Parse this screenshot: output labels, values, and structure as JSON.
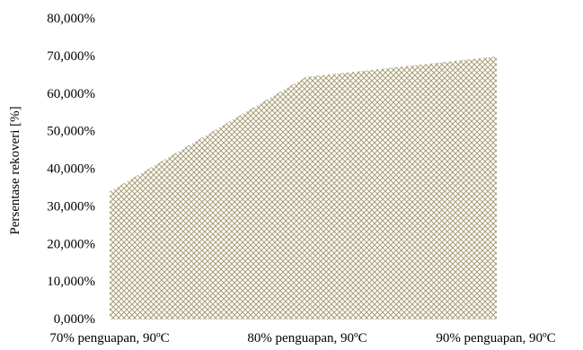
{
  "chart_data": {
    "type": "area",
    "title": "",
    "xlabel": "",
    "ylabel": "Persentase rekoveri [%]",
    "categories": [
      "70% penguapan, 90ºC",
      "80% penguapan, 90ºC",
      "90% penguapan, 90ºC"
    ],
    "series": [
      {
        "values": [
          34.0,
          64.5,
          70.0
        ]
      }
    ],
    "ylim": [
      0,
      80
    ],
    "yticks": [
      "0,000%",
      "10,000%",
      "20,000%",
      "30,000%",
      "40,000%",
      "50,000%",
      "60,000%",
      "70,000%",
      "80,000%"
    ],
    "grid": false,
    "legend": "none",
    "fill_pattern": "crosshatch",
    "colors": {
      "hatch": "#a79d74",
      "background": "#ffffff"
    }
  }
}
